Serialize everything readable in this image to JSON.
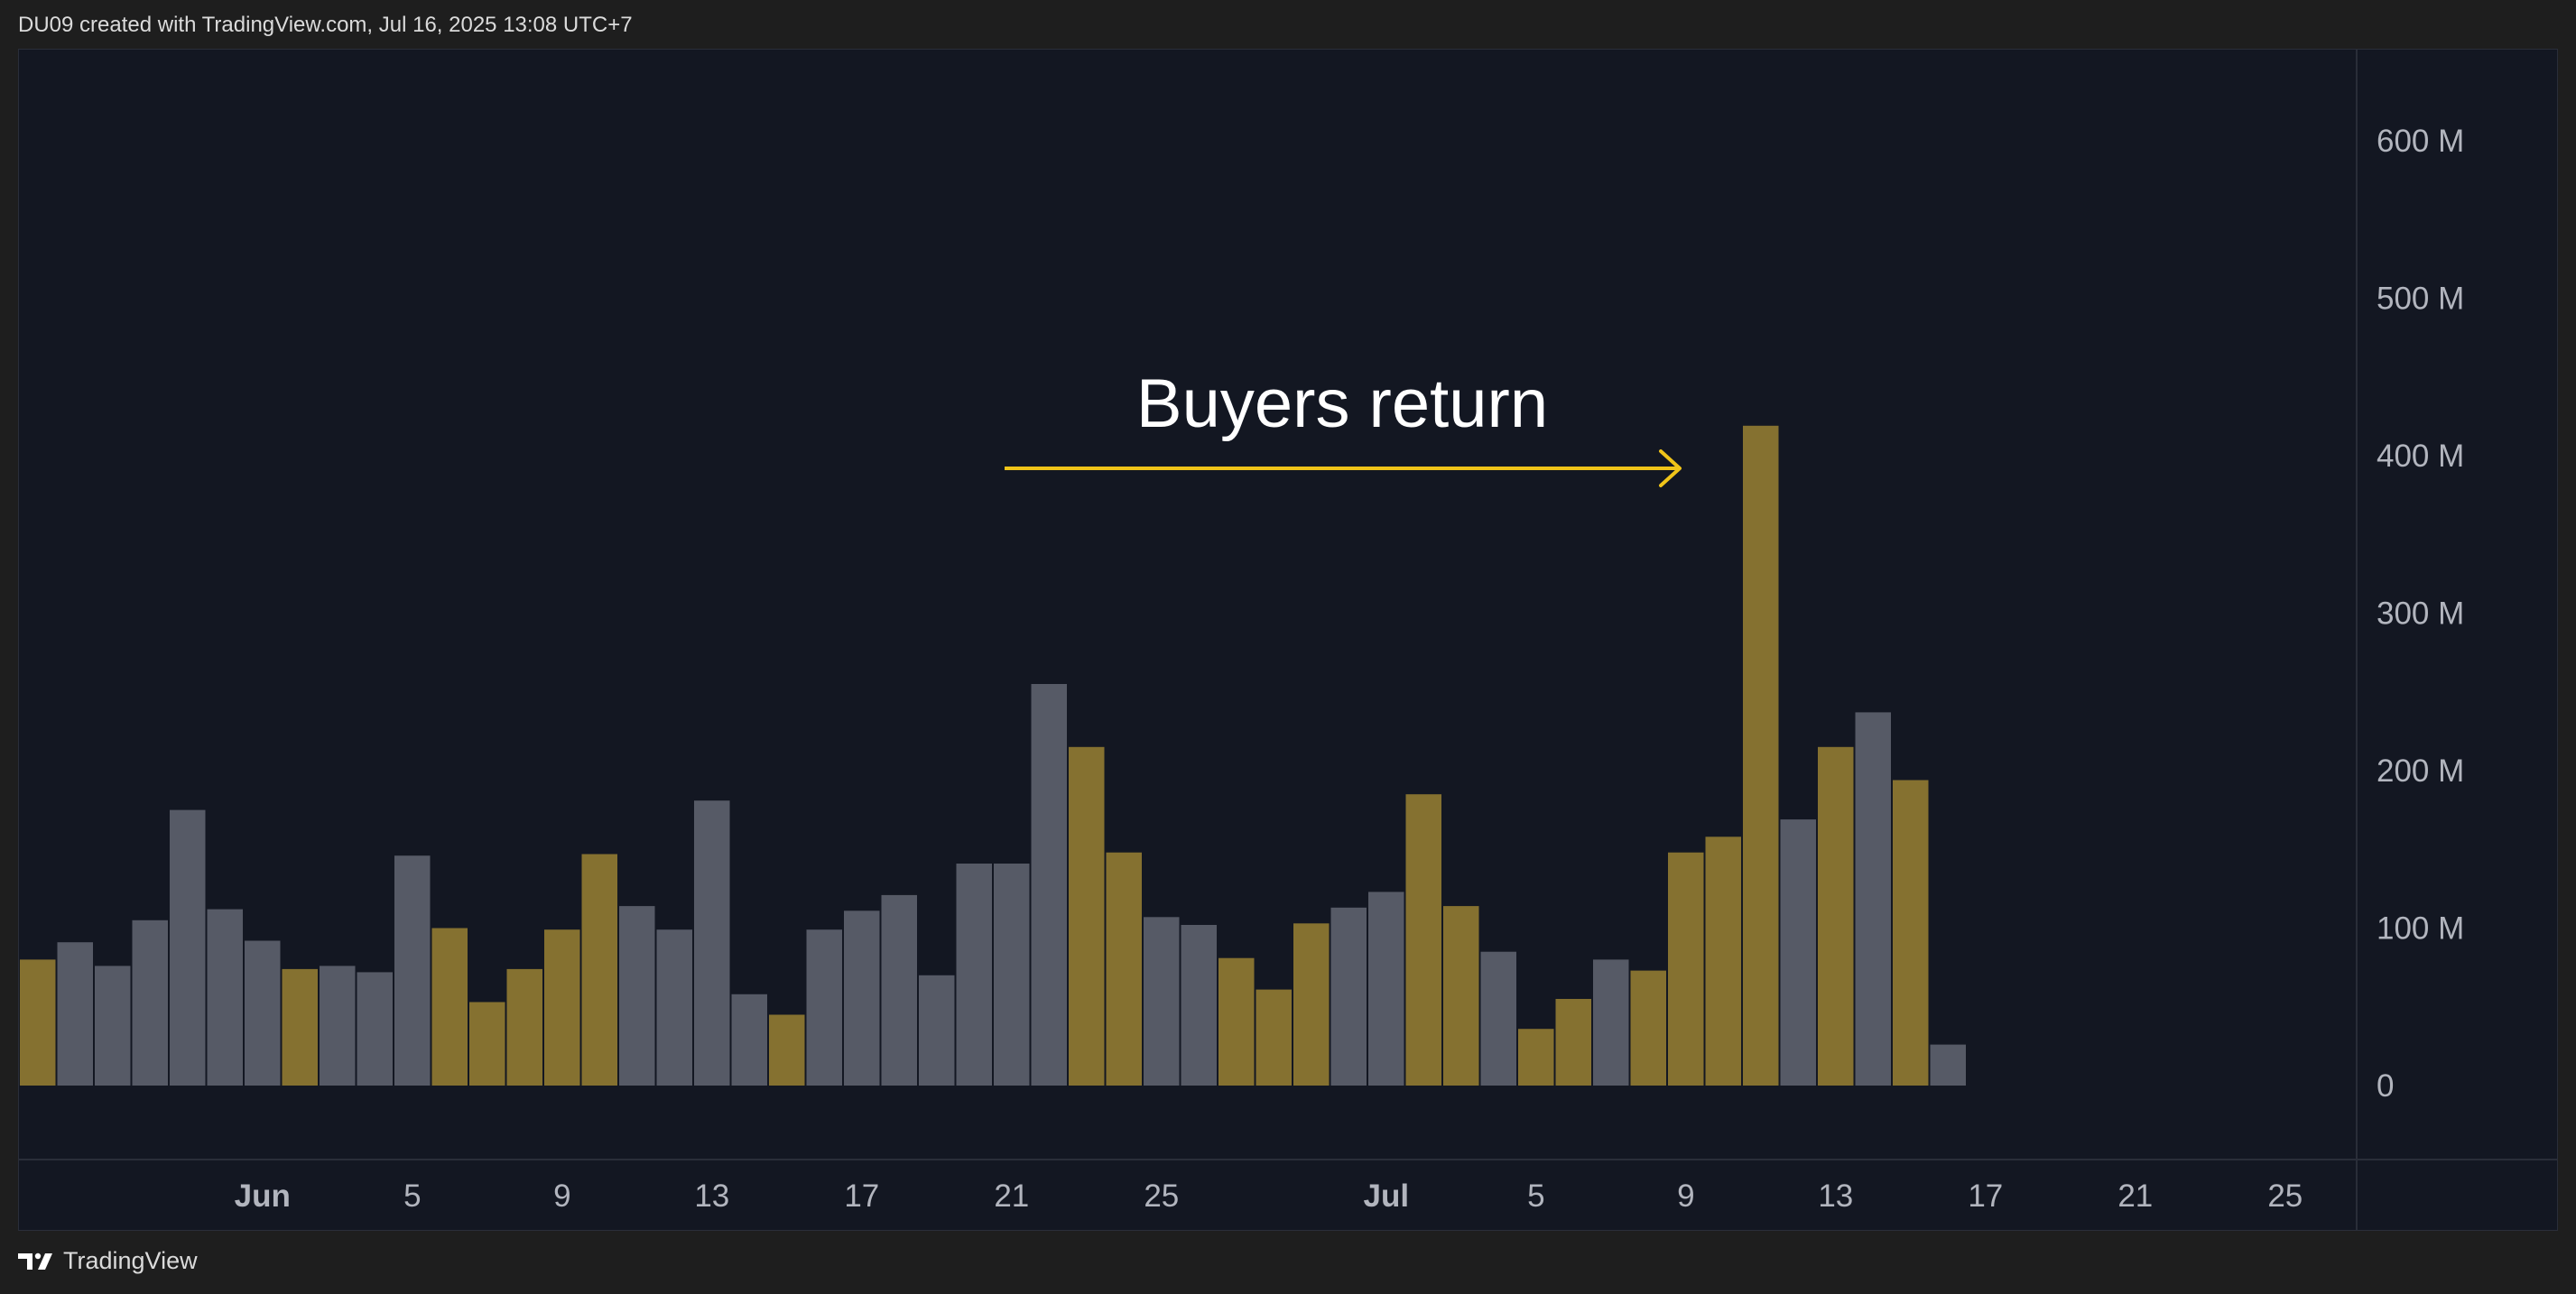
{
  "header": {
    "text": "DU09 created with TradingView.com, Jul 16, 2025 13:08 UTC+7"
  },
  "footer": {
    "brand": "TradingView"
  },
  "annotation": {
    "text": "Buyers return",
    "color": "#f0c419"
  },
  "colors": {
    "up": "#857130",
    "down": "#565a66",
    "background": "#131722",
    "axis_text": "#b2b5be",
    "grid_line": "#2a2e39"
  },
  "chart_data": {
    "type": "bar",
    "title": "",
    "xlabel": "",
    "ylabel": "",
    "ylim": [
      0,
      650000000
    ],
    "y_ticks": [
      {
        "value": 0,
        "label": "0"
      },
      {
        "value": 100000000,
        "label": "100 M"
      },
      {
        "value": 200000000,
        "label": "200 M"
      },
      {
        "value": 300000000,
        "label": "300 M"
      },
      {
        "value": 400000000,
        "label": "400 M"
      },
      {
        "value": 500000000,
        "label": "500 M"
      },
      {
        "value": 600000000,
        "label": "600 M"
      }
    ],
    "x_ticks": [
      {
        "date": "2025-06-01",
        "label": "Jun",
        "bold": true
      },
      {
        "date": "2025-06-05",
        "label": "5",
        "bold": false
      },
      {
        "date": "2025-06-09",
        "label": "9",
        "bold": false
      },
      {
        "date": "2025-06-13",
        "label": "13",
        "bold": false
      },
      {
        "date": "2025-06-17",
        "label": "17",
        "bold": false
      },
      {
        "date": "2025-06-21",
        "label": "21",
        "bold": false
      },
      {
        "date": "2025-06-25",
        "label": "25",
        "bold": false
      },
      {
        "date": "2025-07-01",
        "label": "Jul",
        "bold": true
      },
      {
        "date": "2025-07-05",
        "label": "5",
        "bold": false
      },
      {
        "date": "2025-07-09",
        "label": "9",
        "bold": false
      },
      {
        "date": "2025-07-13",
        "label": "13",
        "bold": false
      },
      {
        "date": "2025-07-17",
        "label": "17",
        "bold": false
      },
      {
        "date": "2025-07-21",
        "label": "21",
        "bold": false
      },
      {
        "date": "2025-07-25",
        "label": "25",
        "bold": false
      }
    ],
    "x_range": [
      "2025-05-26",
      "2025-07-27"
    ],
    "bars": [
      {
        "date": "2025-05-26",
        "value": 80000000,
        "dir": "up"
      },
      {
        "date": "2025-05-27",
        "value": 91000000,
        "dir": "down"
      },
      {
        "date": "2025-05-28",
        "value": 76000000,
        "dir": "down"
      },
      {
        "date": "2025-05-29",
        "value": 105000000,
        "dir": "down"
      },
      {
        "date": "2025-05-30",
        "value": 175000000,
        "dir": "down"
      },
      {
        "date": "2025-05-31",
        "value": 112000000,
        "dir": "down"
      },
      {
        "date": "2025-06-01",
        "value": 92000000,
        "dir": "down"
      },
      {
        "date": "2025-06-02",
        "value": 74000000,
        "dir": "up"
      },
      {
        "date": "2025-06-03",
        "value": 76000000,
        "dir": "down"
      },
      {
        "date": "2025-06-04",
        "value": 72000000,
        "dir": "down"
      },
      {
        "date": "2025-06-05",
        "value": 146000000,
        "dir": "down"
      },
      {
        "date": "2025-06-06",
        "value": 100000000,
        "dir": "up"
      },
      {
        "date": "2025-06-07",
        "value": 53000000,
        "dir": "up"
      },
      {
        "date": "2025-06-08",
        "value": 74000000,
        "dir": "up"
      },
      {
        "date": "2025-06-09",
        "value": 99000000,
        "dir": "up"
      },
      {
        "date": "2025-06-10",
        "value": 147000000,
        "dir": "up"
      },
      {
        "date": "2025-06-11",
        "value": 114000000,
        "dir": "down"
      },
      {
        "date": "2025-06-12",
        "value": 99000000,
        "dir": "down"
      },
      {
        "date": "2025-06-13",
        "value": 181000000,
        "dir": "down"
      },
      {
        "date": "2025-06-14",
        "value": 58000000,
        "dir": "down"
      },
      {
        "date": "2025-06-15",
        "value": 45000000,
        "dir": "up"
      },
      {
        "date": "2025-06-16",
        "value": 99000000,
        "dir": "down"
      },
      {
        "date": "2025-06-17",
        "value": 111000000,
        "dir": "down"
      },
      {
        "date": "2025-06-18",
        "value": 121000000,
        "dir": "down"
      },
      {
        "date": "2025-06-19",
        "value": 70000000,
        "dir": "down"
      },
      {
        "date": "2025-06-20",
        "value": 141000000,
        "dir": "down"
      },
      {
        "date": "2025-06-21",
        "value": 141000000,
        "dir": "down"
      },
      {
        "date": "2025-06-22",
        "value": 255000000,
        "dir": "down"
      },
      {
        "date": "2025-06-23",
        "value": 215000000,
        "dir": "up"
      },
      {
        "date": "2025-06-24",
        "value": 148000000,
        "dir": "up"
      },
      {
        "date": "2025-06-25",
        "value": 107000000,
        "dir": "down"
      },
      {
        "date": "2025-06-26",
        "value": 102000000,
        "dir": "down"
      },
      {
        "date": "2025-06-27",
        "value": 81000000,
        "dir": "up"
      },
      {
        "date": "2025-06-28",
        "value": 61000000,
        "dir": "up"
      },
      {
        "date": "2025-06-29",
        "value": 103000000,
        "dir": "up"
      },
      {
        "date": "2025-06-30",
        "value": 113000000,
        "dir": "down"
      },
      {
        "date": "2025-07-01",
        "value": 123000000,
        "dir": "down"
      },
      {
        "date": "2025-07-02",
        "value": 185000000,
        "dir": "up"
      },
      {
        "date": "2025-07-03",
        "value": 114000000,
        "dir": "up"
      },
      {
        "date": "2025-07-04",
        "value": 85000000,
        "dir": "down"
      },
      {
        "date": "2025-07-05",
        "value": 36000000,
        "dir": "up"
      },
      {
        "date": "2025-07-06",
        "value": 55000000,
        "dir": "up"
      },
      {
        "date": "2025-07-07",
        "value": 80000000,
        "dir": "down"
      },
      {
        "date": "2025-07-08",
        "value": 73000000,
        "dir": "up"
      },
      {
        "date": "2025-07-09",
        "value": 148000000,
        "dir": "up"
      },
      {
        "date": "2025-07-10",
        "value": 158000000,
        "dir": "up"
      },
      {
        "date": "2025-07-11",
        "value": 419000000,
        "dir": "up"
      },
      {
        "date": "2025-07-12",
        "value": 169000000,
        "dir": "down"
      },
      {
        "date": "2025-07-13",
        "value": 215000000,
        "dir": "up"
      },
      {
        "date": "2025-07-14",
        "value": 237000000,
        "dir": "down"
      },
      {
        "date": "2025-07-15",
        "value": 194000000,
        "dir": "up"
      },
      {
        "date": "2025-07-16",
        "value": 26000000,
        "dir": "down"
      }
    ]
  }
}
